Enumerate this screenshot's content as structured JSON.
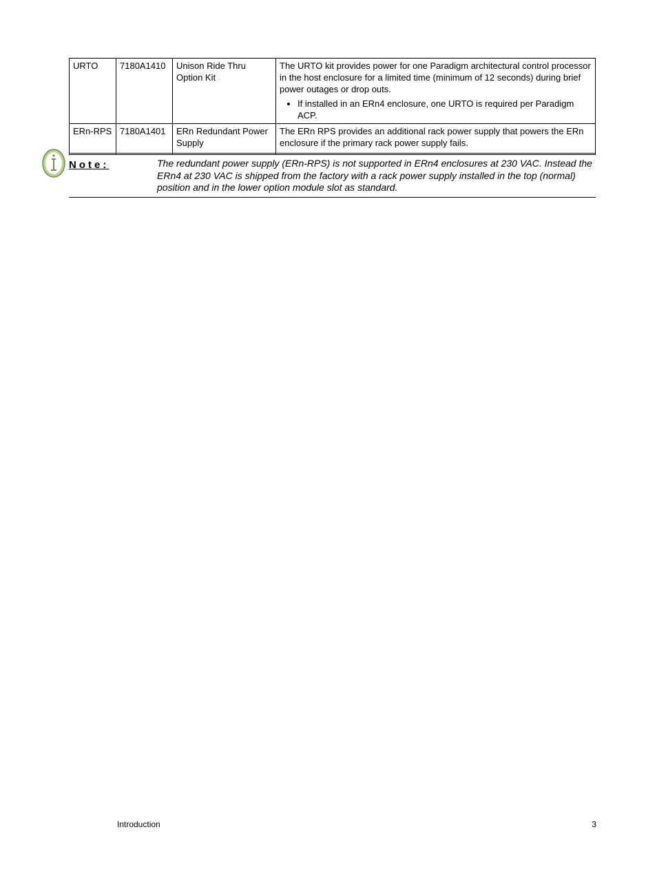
{
  "table": {
    "rows": [
      {
        "code": "URTO",
        "part": "7180A1410",
        "name": "Unison Ride Thru Option Kit",
        "desc_para": "The URTO kit provides power for one Paradigm architectural control processor in the host enclosure for a limited time (minimum of 12 seconds) during brief power outages or drop outs.",
        "bullets": [
          "If installed in an ERn4 enclosure, one URTO is required per Paradigm ACP."
        ]
      },
      {
        "code": "ERn-RPS",
        "part": "7180A1401",
        "name": "ERn Redundant Power Supply",
        "desc_para": "The ERn RPS provides an additional rack power supply that powers the ERn enclosure if the primary rack power supply fails.",
        "bullets": []
      }
    ]
  },
  "note": {
    "label": "Note:",
    "text": "The redundant power supply (ERn-RPS) is not supported in ERn4 enclosures at 230 VAC. Instead the ERn4 at 230 VAC is shipped from the factory with a rack power supply installed in the top (normal) position and in the lower option module slot as standard."
  },
  "footer": {
    "section": "Introduction",
    "page": "3"
  },
  "colors": {
    "icon_outer": "#b9d28c",
    "icon_border": "#6f8f4f",
    "icon_inner": "#ffffff",
    "icon_glyph": "#6f8f4f"
  }
}
